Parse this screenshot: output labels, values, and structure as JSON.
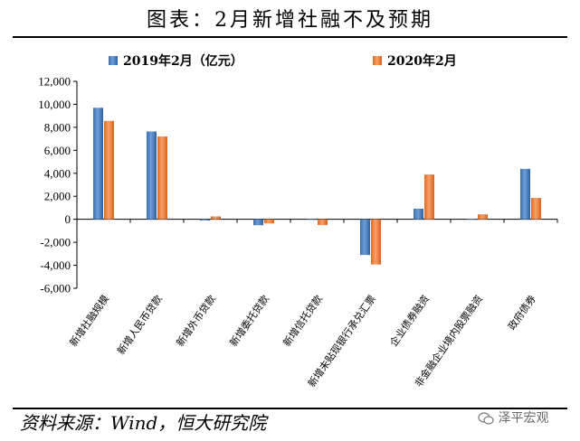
{
  "header": {
    "title": "图表：2月新增社融不及预期"
  },
  "footer": {
    "source": "资料来源：Wind，恒大研究院",
    "watermark": "泽平宏观",
    "watermark_icon": "wechat-icon"
  },
  "chart_data": {
    "type": "bar",
    "title": "",
    "xlabel": "",
    "ylabel": "",
    "ylim": [
      -6000,
      12000
    ],
    "yticks": [
      -6000,
      -4000,
      -2000,
      0,
      2000,
      4000,
      6000,
      8000,
      10000,
      12000
    ],
    "ytick_labels": [
      "-6,000",
      "-4,000",
      "-2,000",
      "0",
      "2,000",
      "4,000",
      "6,000",
      "8,000",
      "10,000",
      "12,000"
    ],
    "grid": false,
    "legend_position": "top",
    "categories": [
      "新增社融规模",
      "新增人民币贷款",
      "新增外币贷款",
      "新增委托贷款",
      "新增信托贷款",
      "新增未贴现银行承兑汇票",
      "企业债券融资",
      "非金融企业境内股票融资",
      "政府债券"
    ],
    "series": [
      {
        "name": "2019年2月（亿元）",
        "color": "#4a7fc0",
        "values": [
          9700,
          7641,
          -104,
          -516,
          -35,
          -3103,
          921,
          7,
          4388
        ]
      },
      {
        "name": "2020年2月",
        "color": "#ed7d31",
        "values": [
          8554,
          7202,
          246,
          -360,
          -500,
          -3933,
          3894,
          432,
          1858
        ]
      }
    ]
  }
}
